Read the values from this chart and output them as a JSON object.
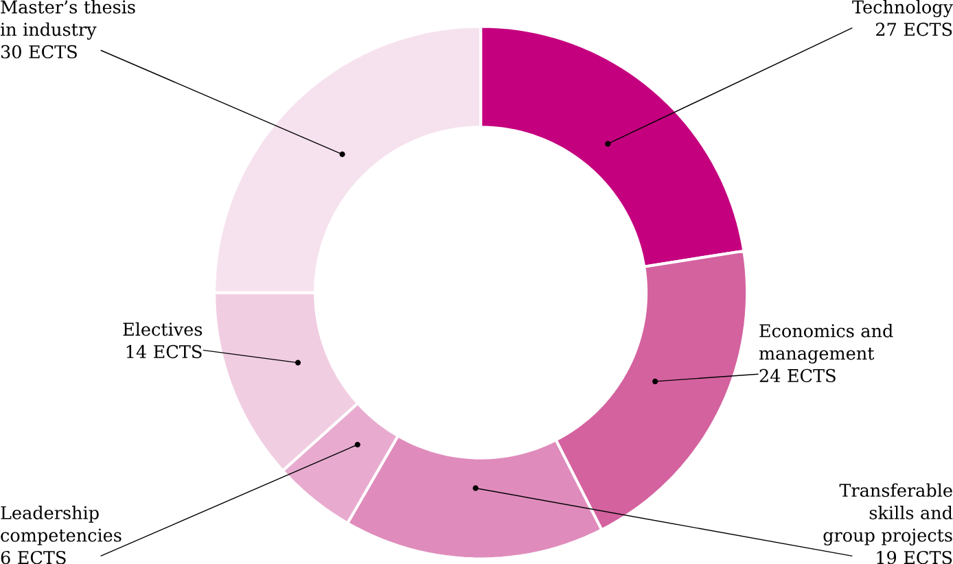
{
  "chart_data": {
    "type": "donut",
    "categories": [
      "Technology",
      "Economics and management",
      "Transferable skills and group projects",
      "Leadership competencies",
      "Electives",
      "Master’s thesis in industry"
    ],
    "values": [
      27,
      24,
      19,
      6,
      14,
      30
    ],
    "value_labels": [
      "27 ECTS",
      "24 ECTS",
      "19 ECTS",
      "6 ECTS",
      "14 ECTS",
      "30 ECTS"
    ],
    "colors": [
      "#c5007f",
      "#d4629f",
      "#df8cbc",
      "#e8abcf",
      "#f1cde2",
      "#f6e2ee"
    ]
  }
}
